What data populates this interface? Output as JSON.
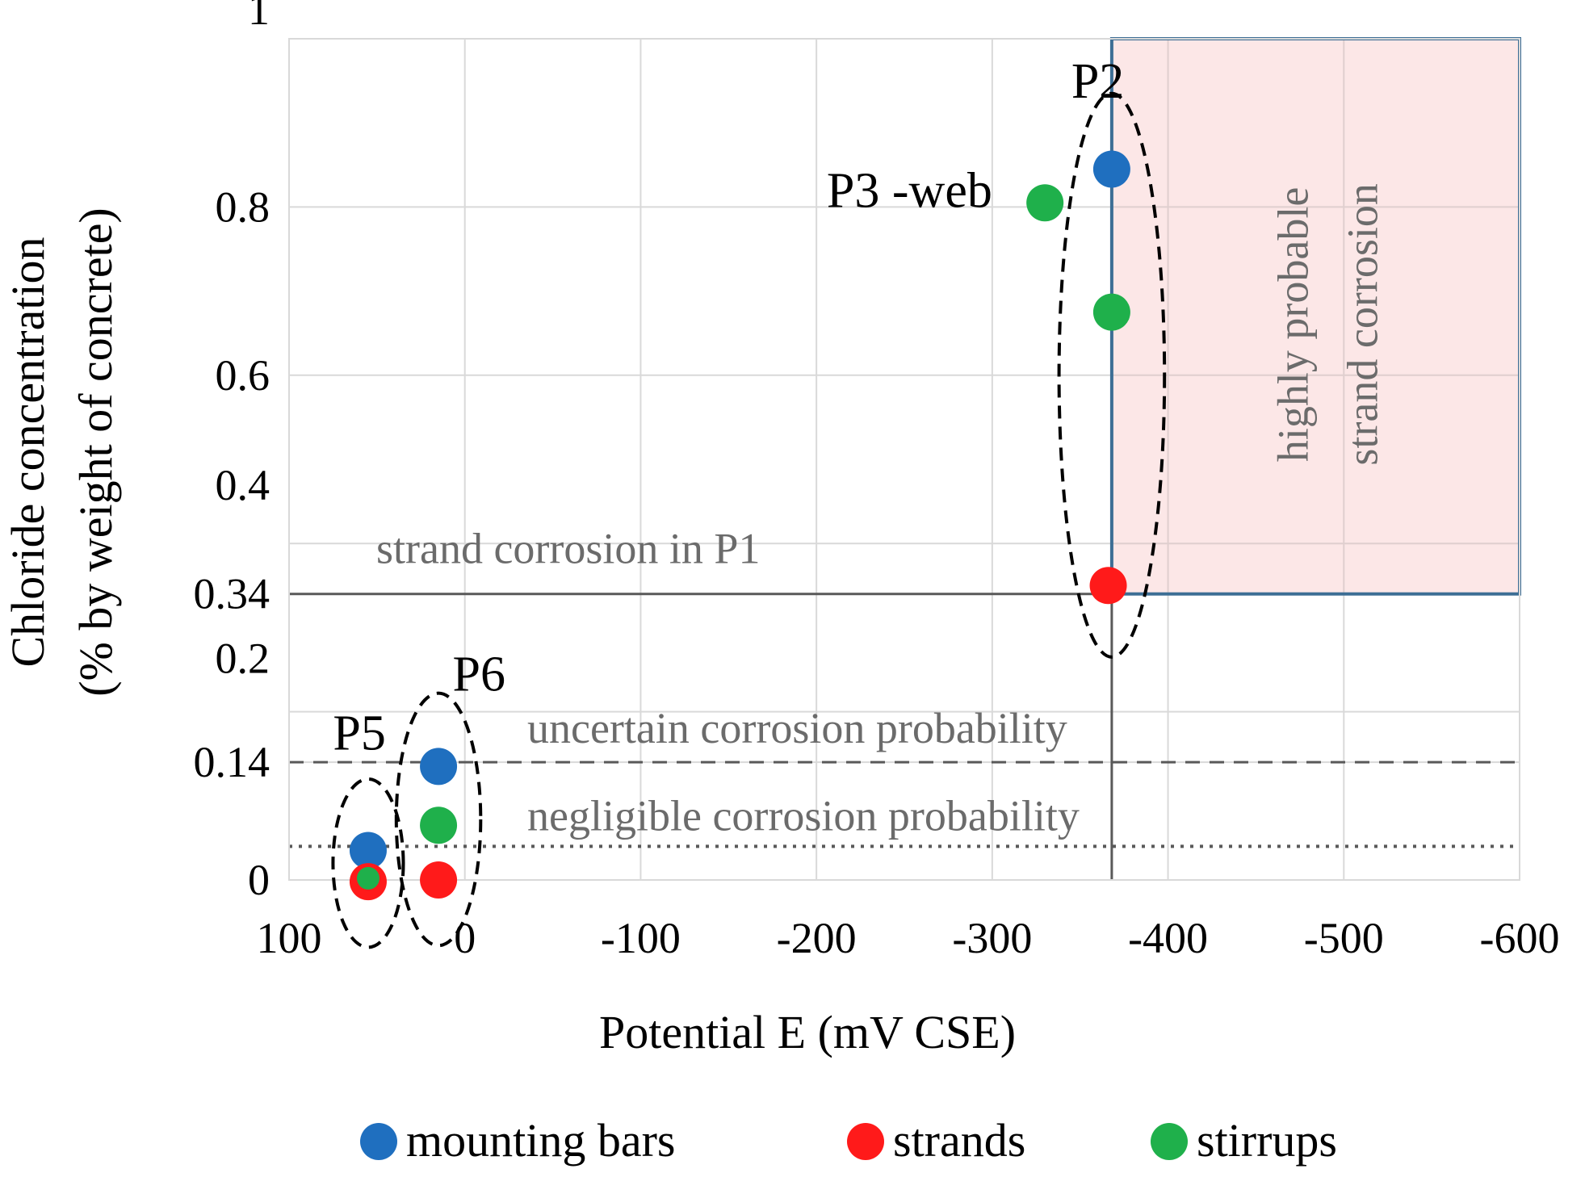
{
  "chart_data": {
    "type": "scatter",
    "title": "",
    "xlabel": "Potential E (mV CSE)",
    "ylabel_line1": "Chloride concentration",
    "ylabel_line2": "(% by weight of concrete)",
    "xlim": [
      100,
      -600
    ],
    "ylim": [
      0,
      1
    ],
    "x_ticks": [
      100,
      0,
      -100,
      -200,
      -300,
      -400,
      -500,
      -600
    ],
    "x_tick_labels": [
      "100",
      "0",
      "-100",
      "-200",
      "-300",
      "-400",
      "-500",
      "-600"
    ],
    "y_ticks": [
      0,
      0.14,
      0.2,
      0.34,
      0.4,
      0.6,
      0.8,
      1
    ],
    "y_tick_labels": [
      "0",
      "0.14",
      "0.2",
      "0.34",
      "0.4",
      "0.6",
      "0.8",
      "1"
    ],
    "grid": true,
    "series": [
      {
        "name": "mounting bars",
        "color": "#1f6fbf",
        "points": [
          {
            "x": -368,
            "y": 0.845
          },
          {
            "x": 15,
            "y": 0.135
          },
          {
            "x": 55,
            "y": 0.035
          }
        ]
      },
      {
        "name": "strands",
        "color": "#ff1a1a",
        "points": [
          {
            "x": -366,
            "y": 0.35
          },
          {
            "x": 15,
            "y": 0.0
          },
          {
            "x": 55,
            "y": -0.002
          }
        ]
      },
      {
        "name": "stirrups",
        "color": "#1fb04b",
        "points": [
          {
            "x": -330,
            "y": 0.805
          },
          {
            "x": -368,
            "y": 0.675
          },
          {
            "x": 15,
            "y": 0.065
          },
          {
            "x": 55,
            "y": 0.002
          }
        ]
      }
    ],
    "thresholds": [
      {
        "y": 0.34,
        "style": "solid",
        "label": "strand corrosion  in P1"
      },
      {
        "y": 0.14,
        "style": "dashed",
        "label": "uncertain corrosion probability"
      },
      {
        "y": 0.04,
        "style": "dotted",
        "label": "negligible corrosion probability"
      }
    ],
    "vertical_threshold_x": -368,
    "region": {
      "x_from": -368,
      "x_to": -600,
      "y_from": 0.34,
      "y_to": 1,
      "fill": "#fbe3e3",
      "stroke": "#3d6e95",
      "label_line1": "highly probable",
      "label_line2": "strand corrosion"
    },
    "groups": [
      {
        "label": "P2",
        "cx": -368,
        "cy": 0.6,
        "rx": 30,
        "ry": 0.335,
        "label_x": -345,
        "label_y": 0.93
      },
      {
        "label": "P3 -web",
        "label_x": -300,
        "label_y": 0.8,
        "anchor": "end"
      },
      {
        "label": "P5",
        "cx": 55,
        "cy": 0.02,
        "rx": 20,
        "ry": 0.1,
        "label_x": 75,
        "label_y": 0.155
      },
      {
        "label": "P6",
        "cx": 15,
        "cy": 0.072,
        "rx": 24,
        "ry": 0.15,
        "label_x": 7,
        "label_y": 0.225
      }
    ],
    "legend": [
      {
        "label": "mounting bars",
        "color": "#1f6fbf"
      },
      {
        "label": "strands",
        "color": "#ff1a1a"
      },
      {
        "label": "stirrups",
        "color": "#1fb04b"
      }
    ],
    "legend_position": "bottom"
  }
}
